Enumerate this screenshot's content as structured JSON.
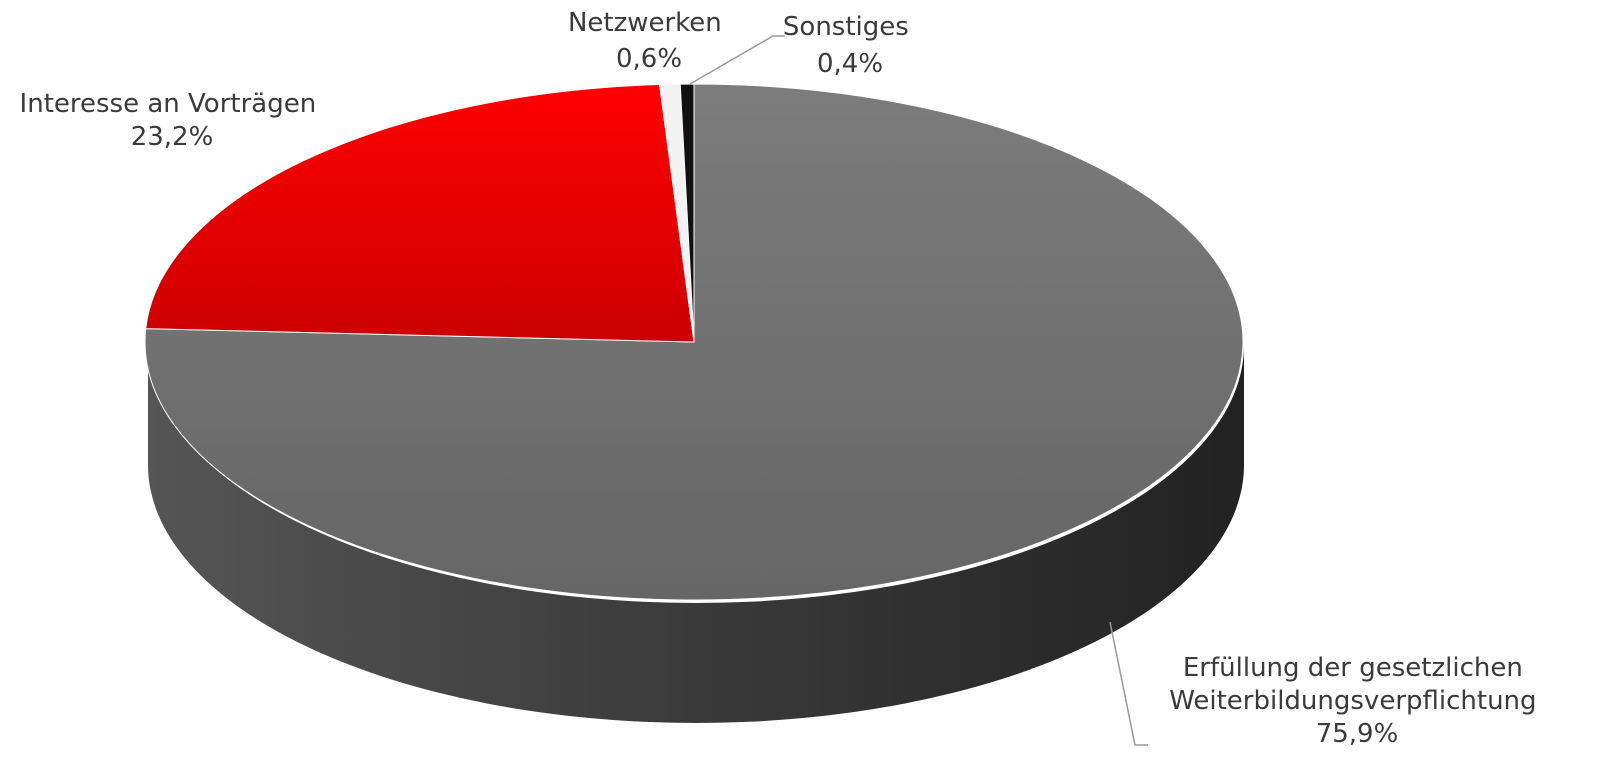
{
  "chart_data": {
    "type": "pie",
    "variant": "3d",
    "slices": [
      {
        "label_lines": [
          "Erfüllung der gesetzlichen",
          "Weiterbildungsverpflichtung"
        ],
        "value": 75.9,
        "value_label": "75,9%",
        "color": "#737373",
        "side_color": "#3a3a3a"
      },
      {
        "label_lines": [
          "Interesse an Vorträgen"
        ],
        "value": 23.2,
        "value_label": "23,2%",
        "color": "#e00000",
        "side_color": "#8a0000"
      },
      {
        "label_lines": [
          "Netzwerken"
        ],
        "value": 0.6,
        "value_label": "0,6%",
        "color": "#f2f2f2",
        "side_color": "#cfcfcf"
      },
      {
        "label_lines": [
          "Sonstiges"
        ],
        "value": 0.4,
        "value_label": "0,4%",
        "color": "#111111",
        "side_color": "#000000"
      }
    ]
  }
}
